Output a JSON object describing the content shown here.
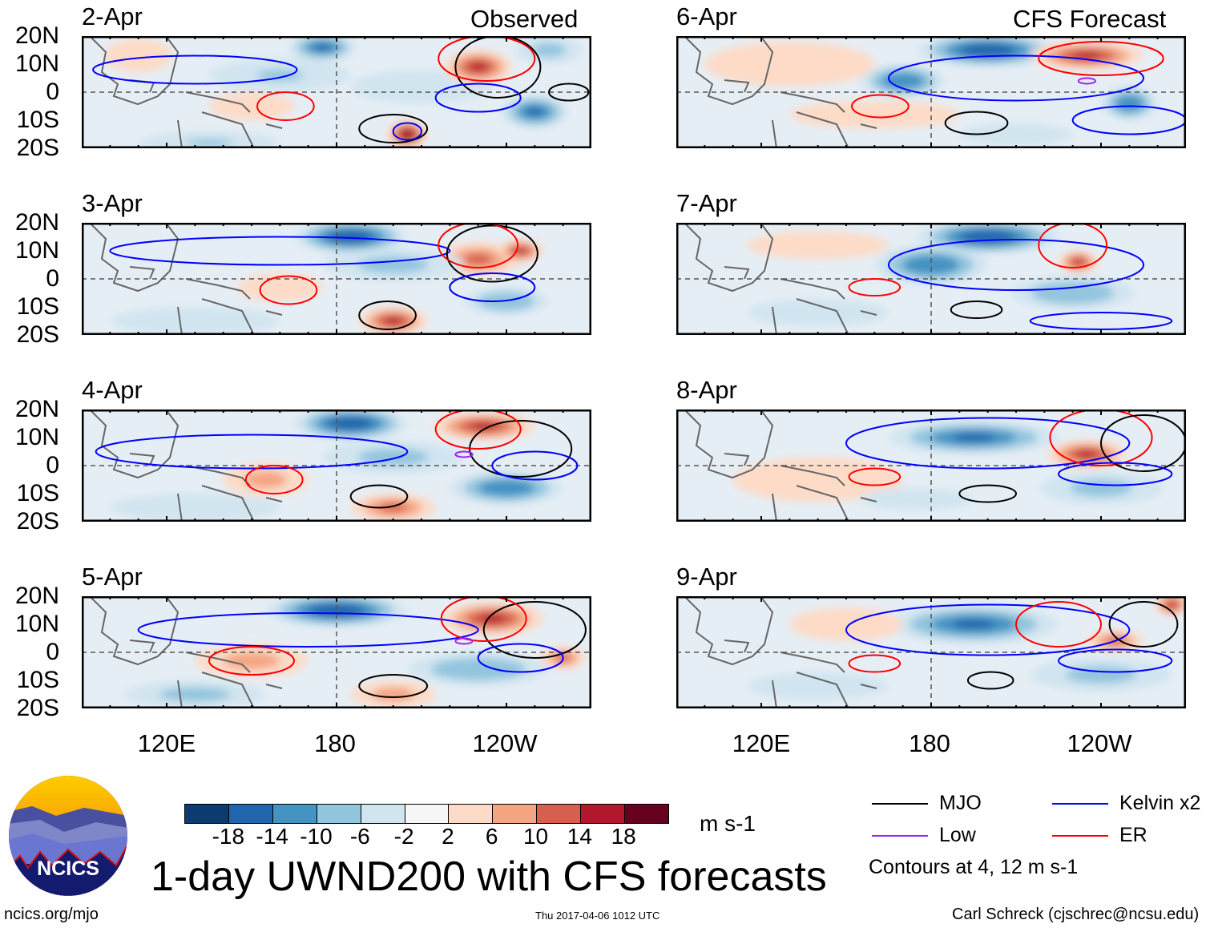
{
  "header": {
    "left_label": "Observed",
    "right_label": "CFS Forecast"
  },
  "title": "1-day UWND200 with CFS forecasts",
  "footer": {
    "url": "ncics.org/mjo",
    "timestamp": "Thu 2017-04-06 1012 UTC",
    "author": "Carl Schreck (cjschrec@ncsu.edu)"
  },
  "logo": {
    "text": "NCICS"
  },
  "axes": {
    "lat_labels": [
      "20N",
      "10N",
      "0",
      "10S",
      "20S"
    ],
    "lon_labels": [
      "120E",
      "180",
      "120W"
    ],
    "lon_range": [
      90,
      270
    ],
    "lat_range": [
      -20,
      20
    ]
  },
  "colorbar": {
    "unit": "m s-1",
    "ticks": [
      "-18",
      "-14",
      "-10",
      "-6",
      "-2",
      "2",
      "6",
      "10",
      "14",
      "18"
    ],
    "colors": [
      "#0b3b6f",
      "#2166ac",
      "#4393c3",
      "#92c5de",
      "#d1e5f0",
      "#f7f7f7",
      "#fddbc7",
      "#f4a582",
      "#d6604d",
      "#b2182b",
      "#67001f"
    ]
  },
  "legend": {
    "items": [
      {
        "label": "MJO",
        "color": "#000000"
      },
      {
        "label": "Kelvin x2",
        "color": "#0000ff"
      },
      {
        "label": "Low",
        "color": "#a020f0"
      },
      {
        "label": "ER",
        "color": "#ff0000"
      }
    ],
    "note": "Contours at 4, 12 m s-1"
  },
  "chart_data": {
    "type": "heatmap",
    "variable": "200-hPa zonal wind anomaly (m s-1)",
    "panels": [
      {
        "date": "2-Apr",
        "source": "Observed",
        "field": [
          [
            175,
            16,
            12,
            5,
            -16
          ],
          [
            160,
            6,
            25,
            6,
            -9
          ],
          [
            210,
            2,
            25,
            6,
            -6
          ],
          [
            230,
            9,
            12,
            6,
            16
          ],
          [
            205,
            -15,
            7,
            5,
            18
          ],
          [
            250,
            -7,
            12,
            6,
            -16
          ],
          [
            110,
            13,
            12,
            6,
            5
          ],
          [
            150,
            -5,
            15,
            5,
            4
          ],
          [
            135,
            -18,
            25,
            4,
            -9
          ],
          [
            255,
            15,
            12,
            5,
            -8
          ]
        ],
        "contours": [
          [
            "Kelvin",
            130,
            8,
            36,
            5
          ],
          [
            "ER",
            162,
            -5,
            10,
            5
          ],
          [
            "MJO",
            200,
            -13,
            12,
            5
          ],
          [
            "MJO",
            237,
            9,
            15,
            11
          ],
          [
            "MJO",
            262,
            0,
            7,
            3
          ],
          [
            "Kelvin",
            205,
            -14,
            5,
            3
          ],
          [
            "ER",
            233,
            12,
            17,
            8
          ],
          [
            "Kelvin",
            230,
            -2,
            15,
            5
          ]
        ]
      },
      {
        "date": "6-Apr",
        "source": "CFS Forecast",
        "field": [
          [
            200,
            15,
            25,
            6,
            -18
          ],
          [
            170,
            4,
            15,
            6,
            -14
          ],
          [
            235,
            13,
            20,
            5,
            16
          ],
          [
            250,
            -4,
            10,
            6,
            -14
          ],
          [
            130,
            10,
            30,
            8,
            2
          ],
          [
            160,
            -8,
            30,
            5,
            3
          ],
          [
            210,
            -15,
            20,
            4,
            -6
          ]
        ],
        "contours": [
          [
            "Kelvin",
            210,
            5,
            45,
            8
          ],
          [
            "ER",
            162,
            -5,
            10,
            4
          ],
          [
            "MJO",
            196,
            -11,
            11,
            4
          ],
          [
            "ER",
            240,
            12,
            22,
            6
          ],
          [
            "Low",
            235,
            4,
            3,
            1
          ],
          [
            "Kelvin",
            250,
            -10,
            20,
            5
          ]
        ]
      },
      {
        "date": "3-Apr",
        "source": "Observed",
        "field": [
          [
            185,
            15,
            20,
            6,
            -18
          ],
          [
            230,
            7,
            15,
            6,
            10
          ],
          [
            245,
            10,
            8,
            4,
            16
          ],
          [
            160,
            -3,
            15,
            5,
            4
          ],
          [
            200,
            -15,
            12,
            5,
            14
          ],
          [
            240,
            -8,
            15,
            5,
            -10
          ],
          [
            130,
            -15,
            30,
            5,
            -6
          ],
          [
            200,
            5,
            25,
            6,
            -7
          ]
        ],
        "contours": [
          [
            "Kelvin",
            160,
            10,
            60,
            5
          ],
          [
            "ER",
            163,
            -4,
            10,
            5
          ],
          [
            "MJO",
            198,
            -13,
            10,
            5
          ],
          [
            "MJO",
            235,
            9,
            16,
            10
          ],
          [
            "Kelvin",
            235,
            -3,
            15,
            5
          ],
          [
            "ER",
            230,
            12,
            14,
            8
          ]
        ]
      },
      {
        "date": "7-Apr",
        "source": "CFS Forecast",
        "field": [
          [
            200,
            15,
            25,
            6,
            -18
          ],
          [
            180,
            5,
            20,
            7,
            -14
          ],
          [
            232,
            6,
            7,
            4,
            16
          ],
          [
            230,
            -5,
            22,
            6,
            -10
          ],
          [
            140,
            -12,
            25,
            5,
            -6
          ],
          [
            140,
            12,
            25,
            5,
            3
          ]
        ],
        "contours": [
          [
            "Kelvin",
            210,
            5,
            45,
            9
          ],
          [
            "ER",
            160,
            -3,
            9,
            3
          ],
          [
            "MJO",
            196,
            -11,
            9,
            3
          ],
          [
            "ER",
            230,
            12,
            12,
            8
          ],
          [
            "Kelvin",
            240,
            -15,
            25,
            3
          ]
        ]
      },
      {
        "date": "4-Apr",
        "source": "Observed",
        "field": [
          [
            185,
            15,
            20,
            6,
            -18
          ],
          [
            232,
            14,
            18,
            5,
            16
          ],
          [
            155,
            -5,
            15,
            6,
            8
          ],
          [
            200,
            -15,
            15,
            5,
            10
          ],
          [
            240,
            -8,
            20,
            6,
            -14
          ],
          [
            200,
            3,
            25,
            6,
            -8
          ],
          [
            130,
            -15,
            30,
            5,
            -6
          ]
        ],
        "contours": [
          [
            "Kelvin",
            150,
            5,
            55,
            6
          ],
          [
            "ER",
            158,
            -5,
            10,
            5
          ],
          [
            "MJO",
            195,
            -11,
            10,
            4
          ],
          [
            "MJO",
            245,
            6,
            18,
            10
          ],
          [
            "ER",
            230,
            13,
            15,
            7
          ],
          [
            "Kelvin",
            250,
            0,
            15,
            5
          ],
          [
            "Low",
            225,
            4,
            3,
            1
          ]
        ]
      },
      {
        "date": "8-Apr",
        "source": "CFS Forecast",
        "field": [
          [
            195,
            10,
            30,
            6,
            -16
          ],
          [
            235,
            4,
            14,
            5,
            14
          ],
          [
            240,
            -8,
            22,
            6,
            -8
          ],
          [
            140,
            -5,
            30,
            8,
            2
          ],
          [
            175,
            -12,
            20,
            4,
            -6
          ]
        ],
        "contours": [
          [
            "Kelvin",
            200,
            8,
            50,
            9
          ],
          [
            "ER",
            160,
            -4,
            9,
            3
          ],
          [
            "MJO",
            200,
            -10,
            10,
            3
          ],
          [
            "ER",
            240,
            10,
            18,
            10
          ],
          [
            "MJO",
            255,
            8,
            15,
            10
          ],
          [
            "Kelvin",
            245,
            -3,
            20,
            4
          ]
        ]
      },
      {
        "date": "5-Apr",
        "source": "Observed",
        "field": [
          [
            180,
            15,
            25,
            6,
            -18
          ],
          [
            235,
            12,
            18,
            6,
            16
          ],
          [
            150,
            -3,
            20,
            6,
            6
          ],
          [
            200,
            -15,
            15,
            5,
            8
          ],
          [
            230,
            -6,
            25,
            6,
            -10
          ],
          [
            130,
            -15,
            25,
            5,
            -8
          ],
          [
            260,
            -2,
            8,
            4,
            10
          ]
        ],
        "contours": [
          [
            "Kelvin",
            170,
            8,
            60,
            6
          ],
          [
            "ER",
            150,
            -3,
            15,
            5
          ],
          [
            "MJO",
            200,
            -12,
            12,
            4
          ],
          [
            "MJO",
            250,
            8,
            18,
            10
          ],
          [
            "ER",
            232,
            12,
            15,
            8
          ],
          [
            "Kelvin",
            245,
            -2,
            15,
            5
          ],
          [
            "Low",
            225,
            4,
            3,
            1
          ]
        ]
      },
      {
        "date": "9-Apr",
        "source": "CFS Forecast",
        "field": [
          [
            195,
            10,
            30,
            7,
            -16
          ],
          [
            245,
            4,
            10,
            4,
            10
          ],
          [
            265,
            17,
            6,
            4,
            14
          ],
          [
            240,
            -8,
            25,
            6,
            -8
          ],
          [
            140,
            -12,
            25,
            5,
            -6
          ],
          [
            150,
            10,
            20,
            6,
            3
          ]
        ],
        "contours": [
          [
            "Kelvin",
            200,
            8,
            50,
            9
          ],
          [
            "ER",
            160,
            -4,
            9,
            3
          ],
          [
            "MJO",
            201,
            -10,
            8,
            3
          ],
          [
            "ER",
            225,
            10,
            15,
            8
          ],
          [
            "MJO",
            255,
            10,
            12,
            8
          ],
          [
            "Kelvin",
            245,
            -3,
            20,
            4
          ]
        ]
      }
    ]
  }
}
